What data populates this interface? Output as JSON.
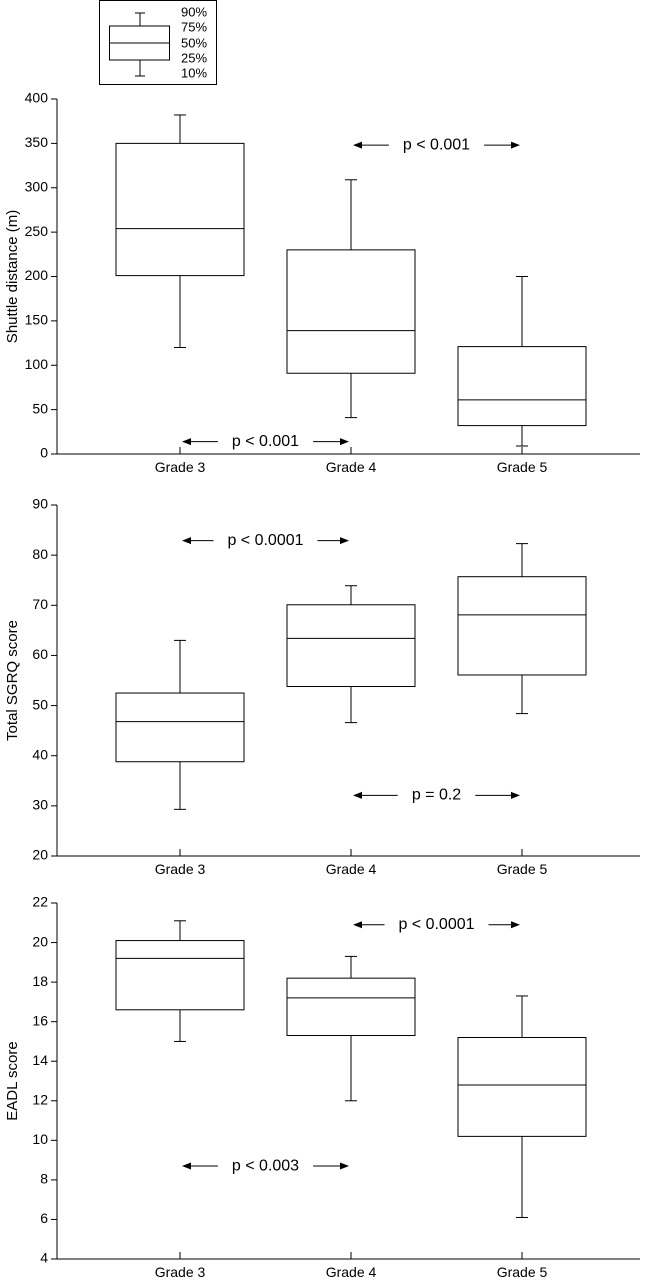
{
  "legend": {
    "labels": [
      "90%",
      "75%",
      "50%",
      "25%",
      "10%"
    ],
    "placement": "top-left"
  },
  "chart_data": [
    {
      "type": "box",
      "ylabel": "Shuttle distance (m)",
      "ylim": [
        0,
        400
      ],
      "yticks": [
        0,
        50,
        100,
        150,
        200,
        250,
        300,
        350,
        400
      ],
      "categories": [
        "Grade 3",
        "Grade 4",
        "Grade 5"
      ],
      "boxes": [
        {
          "p10": 120,
          "p25": 201,
          "p50": 254,
          "p75": 350,
          "p90": 382
        },
        {
          "p10": 41,
          "p25": 91,
          "p50": 139,
          "p75": 230,
          "p90": 309
        },
        {
          "p10": 9,
          "p25": 32,
          "p50": 61,
          "p75": 121,
          "p90": 200
        }
      ],
      "annotations": [
        {
          "text": "p < 0.001",
          "from": 1,
          "to": 2,
          "y": 348
        },
        {
          "text": "p < 0.001",
          "from": 0,
          "to": 1,
          "y": 14
        }
      ]
    },
    {
      "type": "box",
      "ylabel": "Total SGRQ score",
      "ylim": [
        20,
        90
      ],
      "yticks": [
        20,
        30,
        40,
        50,
        60,
        70,
        80,
        90
      ],
      "categories": [
        "Grade 3",
        "Grade 4",
        "Grade 5"
      ],
      "boxes": [
        {
          "p10": 29.3,
          "p25": 38.8,
          "p50": 46.8,
          "p75": 52.5,
          "p90": 63
        },
        {
          "p10": 46.6,
          "p25": 53.8,
          "p50": 63.4,
          "p75": 70.1,
          "p90": 73.9
        },
        {
          "p10": 48.4,
          "p25": 56.1,
          "p50": 68.1,
          "p75": 75.7,
          "p90": 82.3
        }
      ],
      "annotations": [
        {
          "text": "p < 0.0001",
          "from": 0,
          "to": 1,
          "y": 82.9
        },
        {
          "text": "p = 0.2",
          "from": 1,
          "to": 2,
          "y": 32.1
        }
      ]
    },
    {
      "type": "box",
      "ylabel": "EADL score",
      "ylim": [
        4,
        22
      ],
      "yticks": [
        4,
        6,
        8,
        10,
        12,
        14,
        16,
        18,
        20,
        22
      ],
      "categories": [
        "Grade 3",
        "Grade 4",
        "Grade 5"
      ],
      "boxes": [
        {
          "p10": 15,
          "p25": 16.6,
          "p50": 19.2,
          "p75": 20.1,
          "p90": 21.1
        },
        {
          "p10": 12,
          "p25": 15.3,
          "p50": 17.2,
          "p75": 18.2,
          "p90": 19.3
        },
        {
          "p10": 6.1,
          "p25": 10.2,
          "p50": 12.8,
          "p75": 15.2,
          "p90": 17.3
        }
      ],
      "annotations": [
        {
          "text": "p < 0.0001",
          "from": 1,
          "to": 2,
          "y": 20.9
        },
        {
          "text": "p < 0.003",
          "from": 0,
          "to": 1,
          "y": 8.7
        }
      ]
    }
  ]
}
